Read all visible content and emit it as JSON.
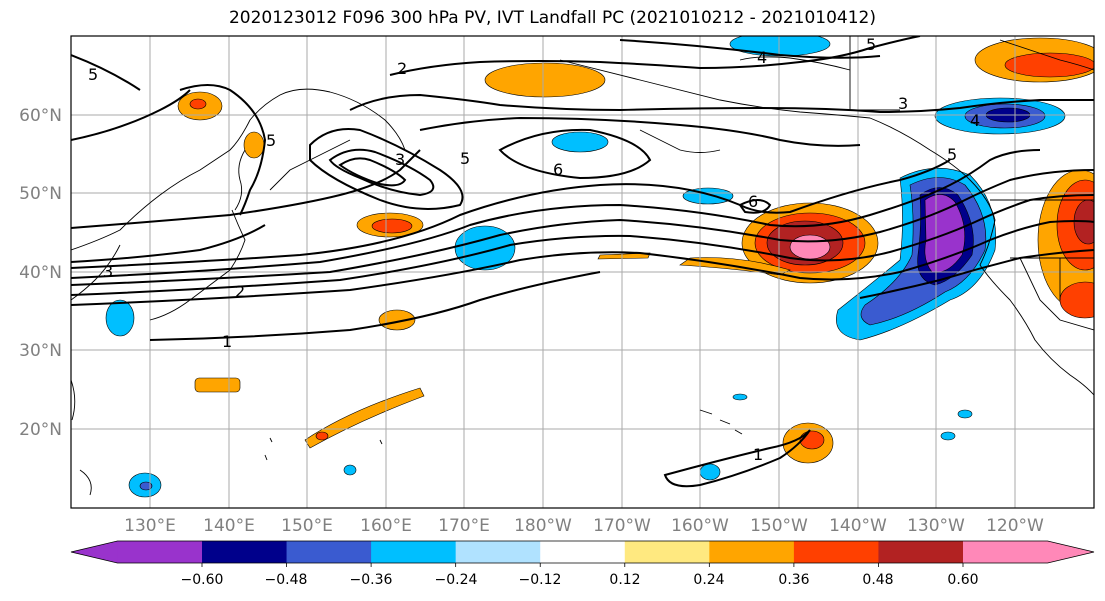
{
  "title": "2020123012 F096 300 hPa PV, IVT Landfall PC (2021010212 - 2021010412)",
  "map": {
    "lat_labels": [
      "60°N",
      "50°N",
      "40°N",
      "30°N",
      "20°N"
    ],
    "lon_labels": [
      "130°E",
      "140°E",
      "150°E",
      "160°E",
      "170°E",
      "180°W",
      "170°W",
      "160°W",
      "150°W",
      "140°W",
      "130°W",
      "120°W"
    ],
    "contour_labels": [
      "1",
      "1",
      "2",
      "2",
      "3",
      "3",
      "3",
      "4",
      "4",
      "5",
      "5",
      "5",
      "5",
      "5",
      "6",
      "6"
    ]
  },
  "colorbar": {
    "ticks": [
      "−0.60",
      "−0.48",
      "−0.36",
      "−0.24",
      "−0.12",
      "0.12",
      "0.24",
      "0.36",
      "0.48",
      "0.60"
    ],
    "colors": [
      "#9933cc",
      "#00008b",
      "#3a5bd0",
      "#00bfff",
      "#b0e2ff",
      "#ffffff",
      "#ffe980",
      "#ffa500",
      "#ff4000",
      "#b22222",
      "#ff88b8"
    ]
  }
}
